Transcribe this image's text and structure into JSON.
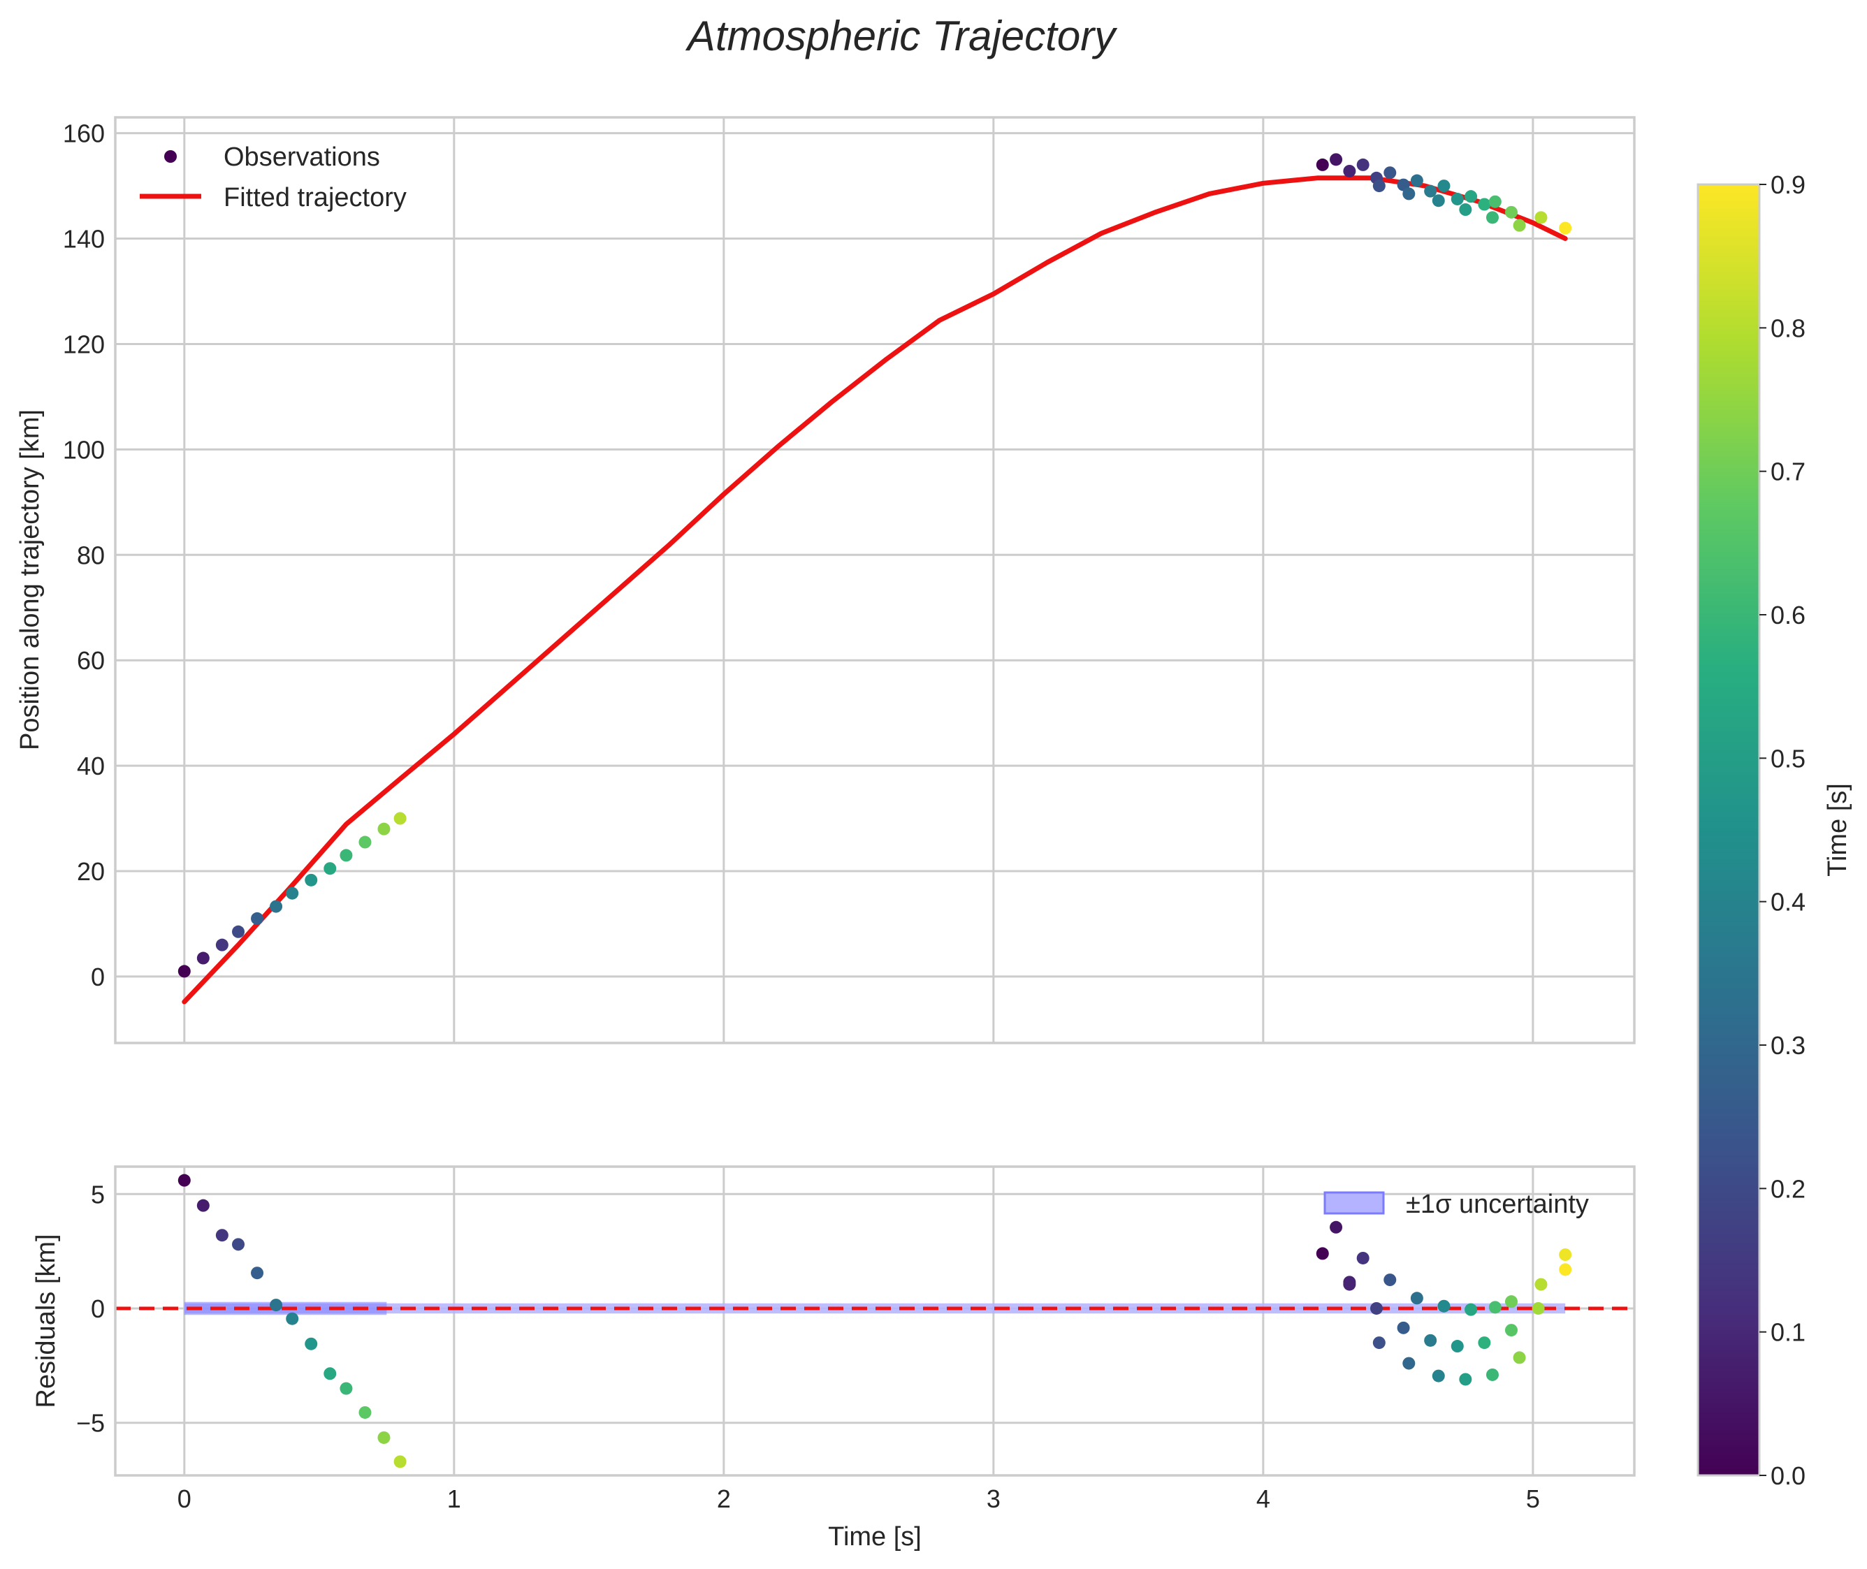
{
  "chart_data": {
    "title": "Atmospheric Trajectory",
    "xlabel": "Time [s]",
    "xlim": [
      -0.256,
      5.376
    ],
    "xticks": [
      0,
      1,
      2,
      3,
      4,
      5
    ],
    "xtick_labels": [
      "0",
      "1",
      "2",
      "3",
      "4",
      "5"
    ],
    "grid": true,
    "panels": [
      {
        "name": "main",
        "type": "scatter+line",
        "ylabel": "Position along trajectory [km]",
        "ylim": [
          -12.6,
          163
        ],
        "yticks": [
          0,
          20,
          40,
          60,
          80,
          100,
          120,
          140,
          160
        ],
        "ytick_labels": [
          "0",
          "20",
          "40",
          "60",
          "80",
          "100",
          "120",
          "140",
          "160"
        ],
        "legend": {
          "position": "top-left",
          "entries": [
            {
              "label": "Observations",
              "kind": "marker",
              "color": "#440154"
            },
            {
              "label": "Fitted trajectory",
              "kind": "line",
              "color": "#ee1111"
            }
          ]
        },
        "fit": {
          "name": "Fitted trajectory",
          "color": "#ee1111",
          "x": [
            0.0,
            0.2,
            0.4,
            0.6,
            0.8,
            1.0,
            1.2,
            1.4,
            1.6,
            1.8,
            2.0,
            2.2,
            2.4,
            2.6,
            2.8,
            3.0,
            3.2,
            3.4,
            3.6,
            3.8,
            4.0,
            4.2,
            4.4,
            4.6,
            4.8,
            5.0,
            5.12
          ],
          "y": [
            -4.8,
            6.0,
            17.3,
            28.9,
            37.5,
            46.0,
            55.0,
            64.0,
            73.0,
            82.0,
            91.5,
            100.5,
            109.0,
            117.0,
            124.5,
            129.5,
            135.5,
            141.0,
            145.0,
            148.5,
            150.5,
            151.5,
            151.5,
            150.0,
            147.0,
            143.0,
            140.0
          ]
        },
        "series": [
          {
            "name": "Observations (early segment)",
            "x": [
              0.0,
              0.07,
              0.14,
              0.2,
              0.27,
              0.34,
              0.4,
              0.47,
              0.54,
              0.6,
              0.67,
              0.74,
              0.8
            ],
            "y": [
              1.0,
              3.5,
              6.0,
              8.5,
              11.0,
              13.3,
              15.8,
              18.3,
              20.5,
              23.0,
              25.5,
              28.0,
              30.0
            ],
            "t": [
              0.0,
              0.07,
              0.14,
              0.2,
              0.27,
              0.34,
              0.4,
              0.47,
              0.54,
              0.6,
              0.67,
              0.74,
              0.8
            ]
          },
          {
            "name": "Observations (late segment)",
            "x": [
              4.22,
              4.27,
              4.32,
              4.37,
              4.42,
              4.43,
              4.47,
              4.52,
              4.54,
              4.57,
              4.62,
              4.65,
              4.67,
              4.72,
              4.75,
              4.77,
              4.82,
              4.85,
              4.86,
              4.92,
              4.95,
              5.03,
              5.12
            ],
            "y": [
              154.0,
              155.0,
              152.8,
              154.0,
              151.5,
              150.0,
              152.5,
              150.2,
              148.5,
              151.0,
              149.0,
              147.2,
              150.0,
              147.5,
              145.5,
              148.0,
              146.5,
              144.0,
              147.0,
              145.0,
              142.5,
              144.0,
              142.0
            ],
            "t": [
              0.0,
              0.05,
              0.09,
              0.13,
              0.17,
              0.22,
              0.24,
              0.26,
              0.3,
              0.33,
              0.37,
              0.4,
              0.42,
              0.47,
              0.5,
              0.53,
              0.57,
              0.6,
              0.63,
              0.7,
              0.74,
              0.8,
              0.9
            ]
          }
        ]
      },
      {
        "name": "residuals",
        "type": "scatter",
        "ylabel": "Residuals [km]",
        "ylim": [
          -7.3,
          6.2
        ],
        "yticks": [
          -5,
          0,
          5
        ],
        "ytick_labels": [
          "−5",
          "0",
          "5"
        ],
        "zero_line": {
          "y": 0,
          "color": "#ee1111",
          "style": "dashed"
        },
        "band": {
          "label": "±1σ uncertainty",
          "x": [
            0.0,
            5.12
          ],
          "half_width": 0.1,
          "color": "#7b7bff"
        },
        "band_emphasis": {
          "x": [
            0.0,
            0.75
          ]
        },
        "legend": {
          "position": "top-right",
          "entries": [
            {
              "label": "±1σ uncertainty",
              "kind": "patch",
              "color": "#b3b3ff"
            }
          ]
        },
        "series": [
          {
            "name": "Residuals (early segment)",
            "x": [
              0.0,
              0.07,
              0.14,
              0.2,
              0.27,
              0.34,
              0.4,
              0.47,
              0.54,
              0.6,
              0.67,
              0.74,
              0.8
            ],
            "y": [
              5.6,
              4.5,
              3.2,
              2.8,
              1.55,
              0.15,
              -0.45,
              -1.55,
              -2.85,
              -3.5,
              -4.55,
              -5.65,
              -6.7
            ],
            "t": [
              0.0,
              0.07,
              0.14,
              0.2,
              0.27,
              0.34,
              0.4,
              0.47,
              0.54,
              0.6,
              0.67,
              0.74,
              0.8
            ]
          },
          {
            "name": "Residuals (late segment)",
            "x": [
              4.22,
              4.27,
              4.32,
              4.32,
              4.37,
              4.42,
              4.43,
              4.47,
              4.52,
              4.54,
              4.57,
              4.62,
              4.65,
              4.67,
              4.72,
              4.75,
              4.77,
              4.82,
              4.85,
              4.86,
              4.92,
              4.92,
              4.95,
              5.02,
              5.03,
              5.12,
              5.12
            ],
            "y": [
              2.4,
              3.55,
              1.05,
              1.15,
              2.2,
              0.0,
              -1.5,
              1.25,
              -0.85,
              -2.4,
              0.45,
              -1.4,
              -2.95,
              0.1,
              -1.65,
              -3.1,
              -0.05,
              -1.5,
              -2.9,
              0.05,
              -0.95,
              0.3,
              -2.15,
              0.0,
              1.05,
              2.35,
              1.7
            ],
            "t": [
              0.0,
              0.05,
              0.09,
              0.09,
              0.13,
              0.17,
              0.22,
              0.24,
              0.26,
              0.3,
              0.33,
              0.37,
              0.4,
              0.42,
              0.47,
              0.5,
              0.53,
              0.57,
              0.6,
              0.63,
              0.66,
              0.7,
              0.74,
              0.77,
              0.8,
              0.88,
              0.9
            ]
          }
        ]
      }
    ],
    "colorbar": {
      "label": "Time [s]",
      "colormap": "viridis",
      "range": [
        0.0,
        0.9
      ],
      "ticks": [
        0.0,
        0.1,
        0.2,
        0.3,
        0.4,
        0.5,
        0.6,
        0.7,
        0.8,
        0.9
      ],
      "tick_labels": [
        "0.0",
        "0.1",
        "0.2",
        "0.3",
        "0.4",
        "0.5",
        "0.6",
        "0.7",
        "0.8",
        "0.9"
      ]
    }
  }
}
